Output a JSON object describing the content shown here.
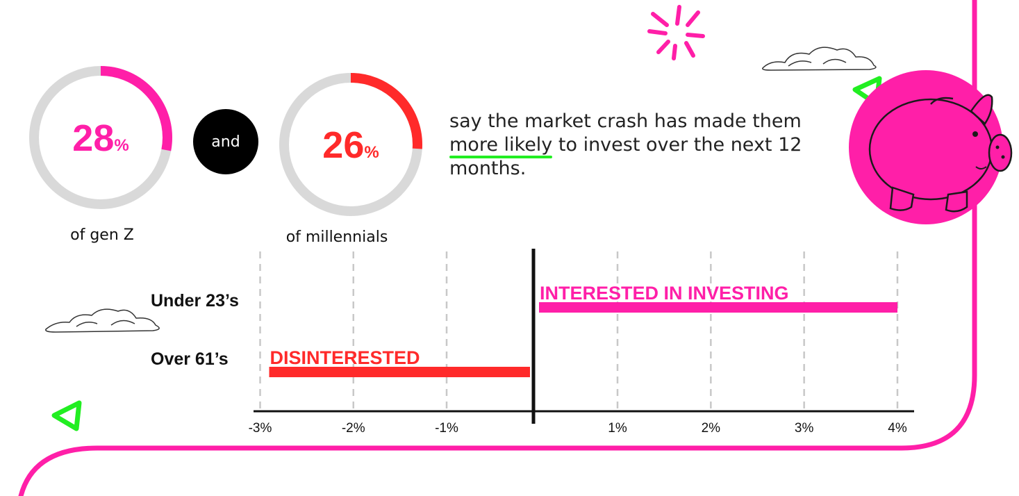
{
  "stats": [
    {
      "value": "28",
      "unit": "%",
      "label": "of gen Z",
      "fraction": 0.28,
      "color": "#ff1fa8"
    },
    {
      "value": "26",
      "unit": "%",
      "label": "of millennials",
      "fraction": 0.26,
      "color": "#ff2a2a"
    }
  ],
  "connector": "and",
  "headline": {
    "before": "say the market crash has made them ",
    "highlight": "more likely",
    "after": " to invest over the next 12 months."
  },
  "colors": {
    "pink": "#ff1fa8",
    "red": "#ff2a2a",
    "green": "#22ee22",
    "ring_track": "#d9d9d9"
  },
  "icons": [
    "sparkle-icon",
    "cloud-icon",
    "piggy-bank-icon",
    "triangle-play-icon"
  ],
  "chart_data": {
    "type": "bar",
    "orientation": "horizontal",
    "categories": [
      "Under 23’s",
      "Over 61’s"
    ],
    "values": [
      4,
      -3
    ],
    "bar_labels": [
      "INTERESTED IN INVESTING",
      "DISINTERESTED"
    ],
    "bar_colors": [
      "#ff1fa8",
      "#ff2a2a"
    ],
    "xlim": [
      -3,
      4
    ],
    "xticks": [
      -3,
      -2,
      -1,
      1,
      2,
      3,
      4
    ],
    "xtick_labels": [
      "-3%",
      "-2%",
      "-1%",
      "1%",
      "2%",
      "3%",
      "4%"
    ],
    "grid": "vertical-dashed"
  }
}
